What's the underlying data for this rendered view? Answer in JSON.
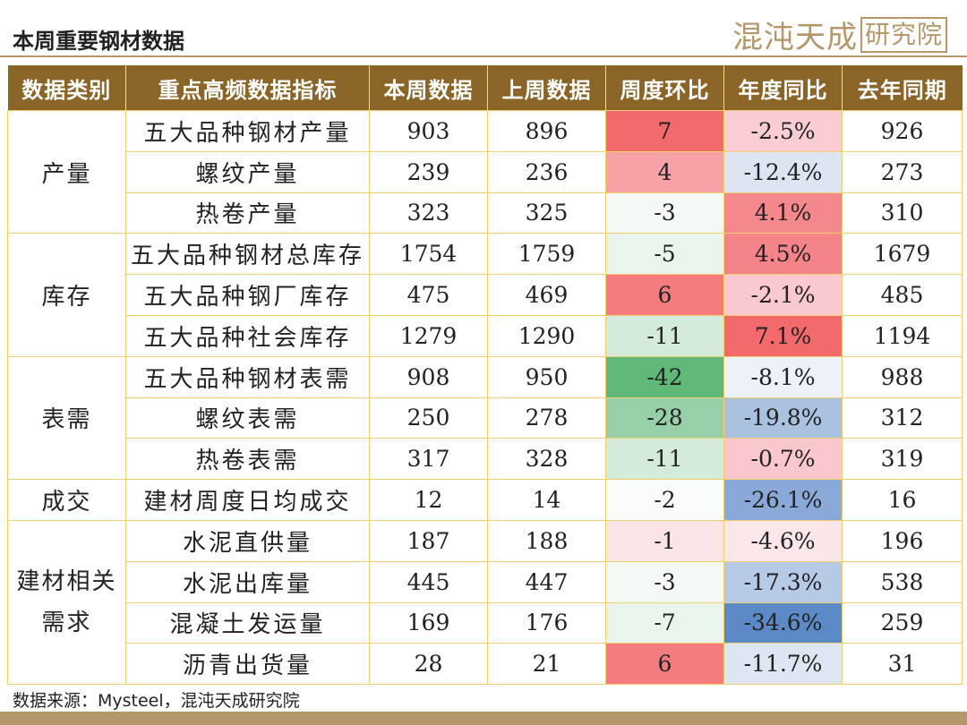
{
  "title": "本周重要钢材数据",
  "logo": {
    "name": "混沌天成",
    "suffix": "研究院"
  },
  "table": {
    "headers": [
      "数据类别",
      "重点高频数据指标",
      "本周数据",
      "上周数据",
      "周度环比",
      "年度同比",
      "去年同期"
    ],
    "groups": [
      {
        "category": "产量",
        "rows": [
          {
            "indicator": "五大品种钢材产量",
            "this_week": "903",
            "last_week": "896",
            "wow": "7",
            "yoy": "-2.5%",
            "last_year": "926",
            "wow_color": "#f26a6b",
            "yoy_color": "#f9cdd3"
          },
          {
            "indicator": "螺纹产量",
            "this_week": "239",
            "last_week": "236",
            "wow": "4",
            "yoy": "-12.4%",
            "last_year": "273",
            "wow_color": "#f7a2a7",
            "yoy_color": "#dce5f1"
          },
          {
            "indicator": "热卷产量",
            "this_week": "323",
            "last_week": "325",
            "wow": "-3",
            "yoy": "4.1%",
            "last_year": "310",
            "wow_color": "#f4f9f5",
            "yoy_color": "#f5888c"
          }
        ]
      },
      {
        "category": "库存",
        "rows": [
          {
            "indicator": "五大品种钢材总库存",
            "this_week": "1754",
            "last_week": "1759",
            "wow": "-5",
            "yoy": "4.5%",
            "last_year": "1679",
            "wow_color": "#e8f4ec",
            "yoy_color": "#f5848a"
          },
          {
            "indicator": "五大品种钢厂库存",
            "this_week": "475",
            "last_week": "469",
            "wow": "6",
            "yoy": "-2.1%",
            "last_year": "485",
            "wow_color": "#f47c7e",
            "yoy_color": "#f9c9cf"
          },
          {
            "indicator": "五大品种社会库存",
            "this_week": "1279",
            "last_week": "1290",
            "wow": "-11",
            "yoy": "7.1%",
            "last_year": "1194",
            "wow_color": "#d4ebdb",
            "yoy_color": "#f26a6b"
          }
        ]
      },
      {
        "category": "表需",
        "rows": [
          {
            "indicator": "五大品种钢材表需",
            "this_week": "908",
            "last_week": "950",
            "wow": "-42",
            "yoy": "-8.1%",
            "last_year": "988",
            "wow_color": "#5fb878",
            "yoy_color": "#edf1f8"
          },
          {
            "indicator": "螺纹表需",
            "this_week": "250",
            "last_week": "278",
            "wow": "-28",
            "yoy": "-19.8%",
            "last_year": "312",
            "wow_color": "#97d0a8",
            "yoy_color": "#aac1e0"
          },
          {
            "indicator": "热卷表需",
            "this_week": "317",
            "last_week": "328",
            "wow": "-11",
            "yoy": "-0.7%",
            "last_year": "319",
            "wow_color": "#d4ebdb",
            "yoy_color": "#f9c7cd"
          }
        ]
      },
      {
        "category": "成交",
        "rows": [
          {
            "indicator": "建材周度日均成交",
            "this_week": "12",
            "last_week": "14",
            "wow": "-2",
            "yoy": "-26.1%",
            "last_year": "16",
            "wow_color": "#f9fcfa",
            "yoy_color": "#8aa9d8"
          }
        ]
      },
      {
        "category": "建材相关需求",
        "rows": [
          {
            "indicator": "水泥直供量",
            "this_week": "187",
            "last_week": "188",
            "wow": "-1",
            "yoy": "-4.6%",
            "last_year": "196",
            "wow_color": "#fbe4e8",
            "yoy_color": "#fbe6ea"
          },
          {
            "indicator": "水泥出库量",
            "this_week": "445",
            "last_week": "447",
            "wow": "-3",
            "yoy": "-17.3%",
            "last_year": "538",
            "wow_color": "#f4f9f5",
            "yoy_color": "#b6c9e5"
          },
          {
            "indicator": "混凝土发运量",
            "this_week": "169",
            "last_week": "176",
            "wow": "-7",
            "yoy": "-34.6%",
            "last_year": "259",
            "wow_color": "#e8f4ec",
            "yoy_color": "#5b8ac6"
          },
          {
            "indicator": "沥青出货量",
            "this_week": "28",
            "last_week": "21",
            "wow": "6",
            "yoy": "-11.7%",
            "last_year": "31",
            "wow_color": "#f47c7e",
            "yoy_color": "#dde6f2"
          }
        ]
      }
    ]
  },
  "source": "数据来源：Mysteel，混沌天成研究院"
}
